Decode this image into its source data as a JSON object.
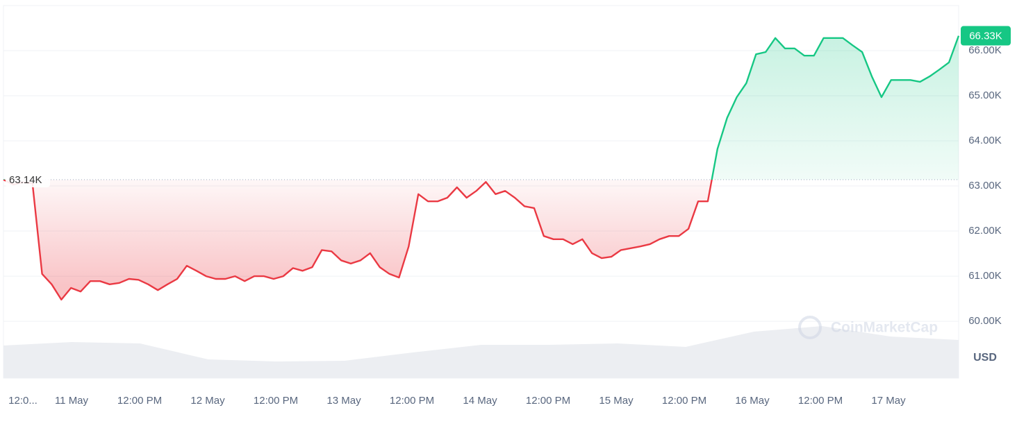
{
  "chart_data": {
    "type": "line",
    "currency": "USD",
    "watermark": "CoinMarketCap",
    "ylim": [
      58740,
      67000
    ],
    "yticks": [
      {
        "value": 60000,
        "label": "60.00K"
      },
      {
        "value": 61000,
        "label": "61.00K"
      },
      {
        "value": 62000,
        "label": "62.00K"
      },
      {
        "value": 63000,
        "label": "63.00K"
      },
      {
        "value": 64000,
        "label": "64.00K"
      },
      {
        "value": 65000,
        "label": "65.00K"
      },
      {
        "value": 66000,
        "label": "66.00K"
      }
    ],
    "xticks": [
      "12:0...",
      "11 May",
      "12:00 PM",
      "12 May",
      "12:00 PM",
      "13 May",
      "12:00 PM",
      "14 May",
      "12:00 PM",
      "15 May",
      "12:00 PM",
      "16 May",
      "12:00 PM",
      "17 May"
    ],
    "baseline": {
      "value": 63140,
      "label": "63.14K"
    },
    "current_price": {
      "value": 66330,
      "label": "66.33K"
    },
    "up_color": "#16c784",
    "down_color": "#ea3943",
    "series": [
      {
        "name": "Price",
        "values": [
          63140,
          63030,
          63080,
          63060,
          61050,
          60820,
          60480,
          60740,
          60660,
          60890,
          60890,
          60820,
          60850,
          60940,
          60920,
          60820,
          60690,
          60820,
          60940,
          61230,
          61120,
          61000,
          60940,
          60940,
          61000,
          60890,
          61000,
          61000,
          60940,
          61000,
          61180,
          61120,
          61200,
          61580,
          61550,
          61350,
          61280,
          61350,
          61510,
          61200,
          61050,
          60970,
          61660,
          62820,
          62660,
          62660,
          62740,
          62970,
          62740,
          62890,
          63090,
          62820,
          62890,
          62740,
          62550,
          62510,
          61890,
          61820,
          61820,
          61710,
          61820,
          61510,
          61400,
          61430,
          61580,
          61620,
          61660,
          61710,
          61820,
          61890,
          61890,
          62050,
          62660,
          62660,
          63820,
          64510,
          64970,
          65280,
          65920,
          65970,
          66280,
          66050,
          66050,
          65890,
          65890,
          66280,
          66280,
          66280,
          66120,
          65970,
          65430,
          64970,
          65350,
          65350,
          65350,
          65310,
          65430,
          65580,
          65740,
          66330
        ]
      },
      {
        "name": "Volume",
        "axis": "y2",
        "color": "#eceef2",
        "values": [
          47,
          52,
          50,
          27,
          24,
          25,
          37,
          48,
          48,
          50,
          45,
          67,
          75,
          60,
          55
        ]
      }
    ],
    "y2lim": [
      0,
      100
    ]
  }
}
